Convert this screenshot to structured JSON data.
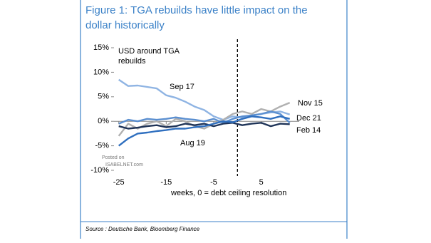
{
  "chart_data": {
    "type": "line",
    "title": "Figure 1: TGA rebuilds have little impact on the dollar historically",
    "annotation": "USD around TGA rebuilds",
    "x_label": "weeks, 0 = debt ceiling resolution",
    "source": "Source : Deutsche Bank, Bloomberg Finance",
    "watermark": [
      "Posted on",
      "ISABELNET.com"
    ],
    "x": [
      -25,
      -23,
      -21,
      -19,
      -17,
      -15,
      -13,
      -11,
      -9,
      -7,
      -5,
      -3,
      -1,
      1,
      3,
      5,
      7,
      9,
      11
    ],
    "xlim": [
      -26,
      13
    ],
    "xticks": [
      -25,
      -15,
      -5,
      5
    ],
    "vlines": [
      0
    ],
    "ylim": [
      -10,
      15
    ],
    "yticks": [
      {
        "value": -10,
        "label": "-10%"
      },
      {
        "value": -5,
        "label": "-5%"
      },
      {
        "value": 0,
        "label": "0%"
      },
      {
        "value": 5,
        "label": "5%"
      },
      {
        "value": 10,
        "label": "10%"
      },
      {
        "value": 15,
        "label": "15%"
      }
    ],
    "series": [
      {
        "name": "Sep 17",
        "color": "#8fb4e3",
        "values": [
          8.5,
          7.2,
          7.3,
          7,
          6.7,
          5.3,
          4.8,
          4,
          3,
          2.3,
          1,
          0.3,
          1,
          0.8,
          1.2,
          1.5,
          1.8,
          2,
          1.4
        ]
      },
      {
        "name": "Nov 15",
        "color": "#b0b0b0",
        "values": [
          -3,
          -0.5,
          -1.5,
          -0.5,
          0,
          -1,
          0.5,
          0,
          -1,
          -1.5,
          -0.5,
          0.3,
          1.5,
          2,
          1.5,
          2.5,
          2,
          3,
          3.8
        ]
      },
      {
        "name": "Dec 21",
        "color": "#5b8fd0",
        "values": [
          -0.5,
          0.3,
          0,
          0.5,
          0.3,
          0.5,
          0.8,
          0.5,
          0.3,
          0,
          0.5,
          -0.3,
          0.5,
          1,
          1.2,
          1.5,
          2,
          1.5,
          -0.3
        ]
      },
      {
        "name": "Feb 14",
        "color": "#1f3458",
        "values": [
          -1,
          -1.5,
          -1.3,
          -1,
          -0.8,
          -1.2,
          -1,
          -0.5,
          -0.8,
          -0.5,
          -1,
          -0.5,
          -0.3,
          -0.8,
          -0.5,
          -0.3,
          -1,
          -0.5,
          -0.6
        ]
      },
      {
        "name": "Aug 19",
        "color": "#2f6fbf",
        "values": [
          -5,
          -3.5,
          -2.5,
          -2.3,
          -2,
          -1.8,
          -1.5,
          -1.5,
          -1.2,
          -1,
          -0.5,
          0,
          -0.2,
          0.5,
          1,
          0.8,
          0.5,
          1,
          0.5
        ]
      }
    ]
  }
}
